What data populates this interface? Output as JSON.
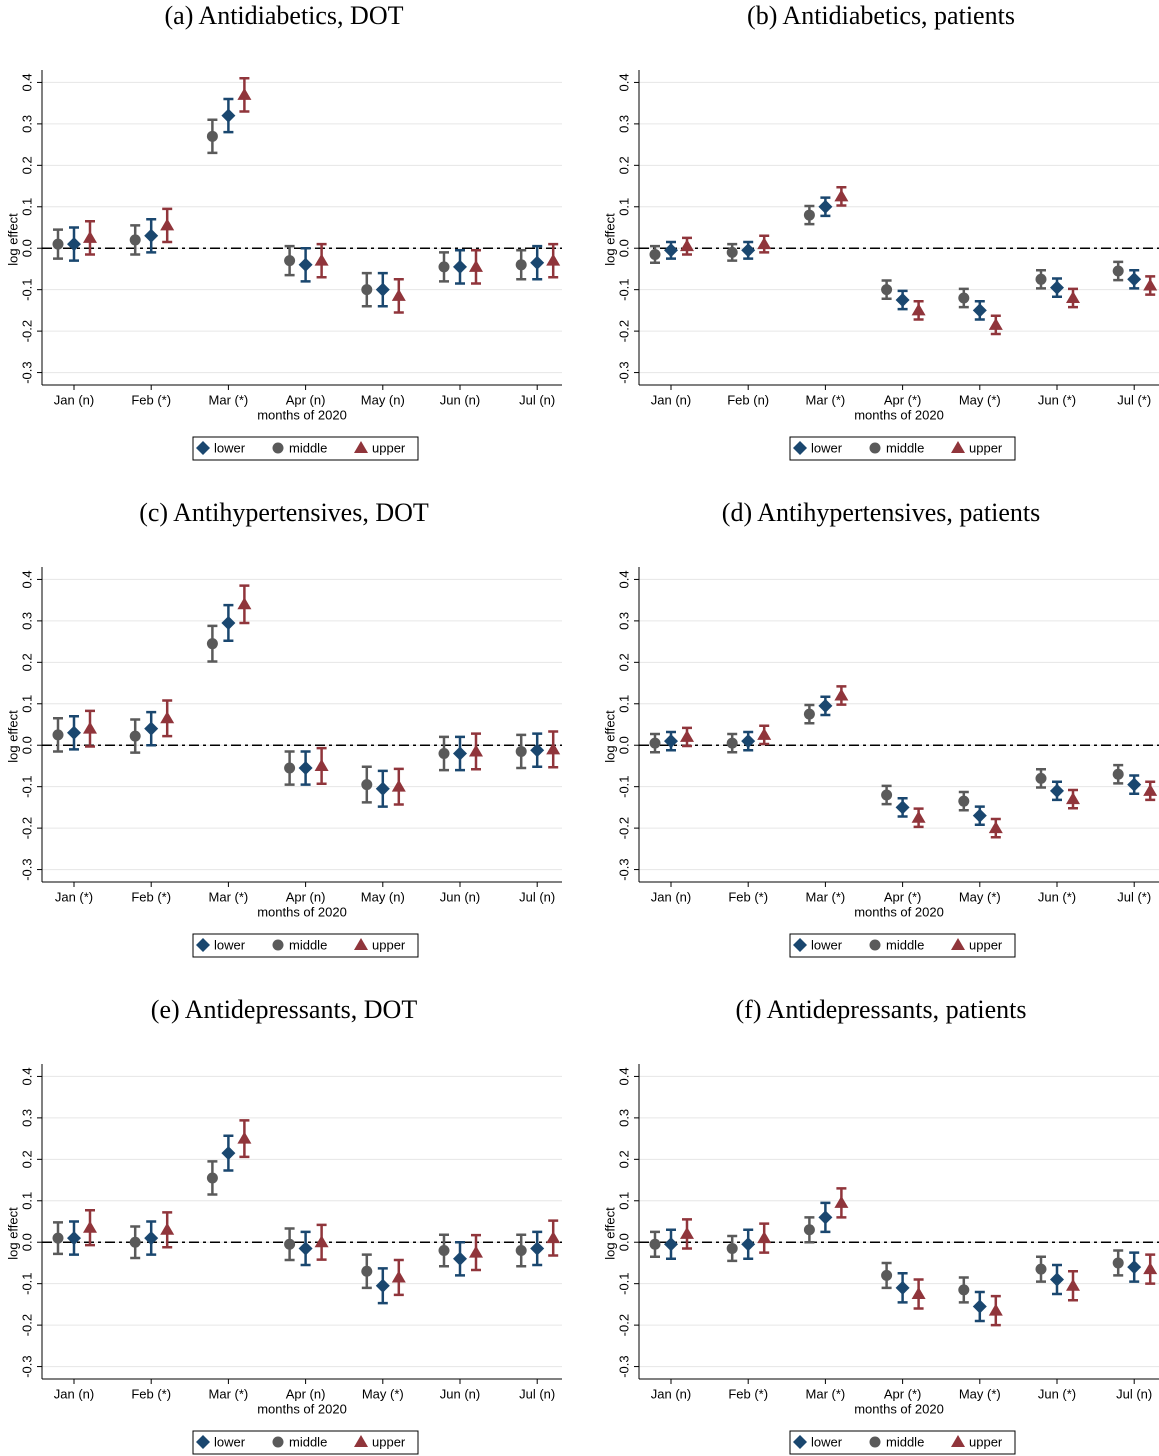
{
  "chart_data": [
    {
      "type": "errorbar",
      "title": "(a) Antidiabetics, DOT",
      "xlabel": "months of 2020",
      "ylabel": "log effect",
      "categories": [
        "Jan (n)",
        "Feb (*)",
        "Mar (*)",
        "Apr (n)",
        "May (n)",
        "Jun (n)",
        "Jul (n)"
      ],
      "ylim": [
        -0.33,
        0.43
      ],
      "yticks": [
        -0.3,
        -0.2,
        -0.1,
        {
          "value": 0,
          "label": "0.0"
        },
        0.1,
        0.2,
        0.3,
        0.4
      ],
      "grid": true,
      "hline": 0,
      "series": [
        {
          "name": "lower",
          "color": "#1a476f",
          "marker": "diamond",
          "values": [
            0.01,
            0.03,
            0.32,
            -0.04,
            -0.1,
            -0.045,
            -0.035
          ],
          "errors": [
            0.04,
            0.04,
            0.04,
            0.04,
            0.04,
            0.04,
            0.04
          ]
        },
        {
          "name": "middle",
          "color": "#5a5a5a",
          "marker": "circle",
          "values": [
            0.01,
            0.02,
            0.27,
            -0.03,
            -0.1,
            -0.045,
            -0.04
          ],
          "errors": [
            0.035,
            0.035,
            0.04,
            0.035,
            0.04,
            0.035,
            0.035
          ]
        },
        {
          "name": "upper",
          "color": "#90353b",
          "marker": "triangle",
          "values": [
            0.025,
            0.055,
            0.37,
            -0.03,
            -0.115,
            -0.045,
            -0.03
          ],
          "errors": [
            0.04,
            0.04,
            0.04,
            0.04,
            0.04,
            0.04,
            0.04
          ]
        }
      ]
    },
    {
      "type": "errorbar",
      "title": "(b) Antidiabetics, patients",
      "xlabel": "months of 2020",
      "ylabel": "log effect",
      "categories": [
        "Jan (n)",
        "Feb (n)",
        "Mar (*)",
        "Apr (*)",
        "May (*)",
        "Jun (*)",
        "Jul (*)"
      ],
      "ylim": [
        -0.33,
        0.43
      ],
      "yticks": [
        -0.3,
        -0.2,
        -0.1,
        {
          "value": 0,
          "label": "0.0"
        },
        0.1,
        0.2,
        0.3,
        0.4
      ],
      "grid": true,
      "hline": 0,
      "series": [
        {
          "name": "lower",
          "color": "#1a476f",
          "marker": "diamond",
          "values": [
            -0.005,
            -0.005,
            0.1,
            -0.125,
            -0.15,
            -0.095,
            -0.075
          ],
          "errors": [
            0.02,
            0.02,
            0.022,
            0.022,
            0.022,
            0.022,
            0.022
          ]
        },
        {
          "name": "middle",
          "color": "#5a5a5a",
          "marker": "circle",
          "values": [
            -0.015,
            -0.01,
            0.08,
            -0.1,
            -0.12,
            -0.075,
            -0.055
          ],
          "errors": [
            0.02,
            0.02,
            0.022,
            0.022,
            0.022,
            0.022,
            0.022
          ]
        },
        {
          "name": "upper",
          "color": "#90353b",
          "marker": "triangle",
          "values": [
            0.005,
            0.01,
            0.125,
            -0.15,
            -0.185,
            -0.12,
            -0.09
          ],
          "errors": [
            0.02,
            0.02,
            0.022,
            0.022,
            0.022,
            0.022,
            0.022
          ]
        }
      ]
    },
    {
      "type": "errorbar",
      "title": "(c) Antihypertensives, DOT",
      "xlabel": "months of 2020",
      "ylabel": "log effect",
      "categories": [
        "Jan (*)",
        "Feb (*)",
        "Mar (*)",
        "Apr (n)",
        "May (n)",
        "Jun (n)",
        "Jul (n)"
      ],
      "ylim": [
        -0.33,
        0.43
      ],
      "yticks": [
        -0.3,
        -0.2,
        -0.1,
        {
          "value": 0,
          "label": "0.0"
        },
        0.1,
        0.2,
        0.3,
        0.4
      ],
      "grid": true,
      "hline": 0,
      "series": [
        {
          "name": "lower",
          "color": "#1a476f",
          "marker": "diamond",
          "values": [
            0.03,
            0.04,
            0.295,
            -0.055,
            -0.105,
            -0.02,
            -0.012
          ],
          "errors": [
            0.04,
            0.04,
            0.043,
            0.04,
            0.043,
            0.04,
            0.04
          ]
        },
        {
          "name": "middle",
          "color": "#5a5a5a",
          "marker": "circle",
          "values": [
            0.025,
            0.022,
            0.245,
            -0.055,
            -0.095,
            -0.02,
            -0.015
          ],
          "errors": [
            0.04,
            0.04,
            0.043,
            0.04,
            0.043,
            0.04,
            0.04
          ]
        },
        {
          "name": "upper",
          "color": "#90353b",
          "marker": "triangle",
          "values": [
            0.04,
            0.065,
            0.34,
            -0.05,
            -0.1,
            -0.015,
            -0.01
          ],
          "errors": [
            0.043,
            0.043,
            0.045,
            0.043,
            0.043,
            0.043,
            0.043
          ]
        }
      ]
    },
    {
      "type": "errorbar",
      "title": "(d) Antihypertensives, patients",
      "xlabel": "months of 2020",
      "ylabel": "log effect",
      "categories": [
        "Jan (n)",
        "Feb (*)",
        "Mar (*)",
        "Apr (*)",
        "May (*)",
        "Jun (*)",
        "Jul (*)"
      ],
      "ylim": [
        -0.33,
        0.43
      ],
      "yticks": [
        -0.3,
        -0.2,
        -0.1,
        {
          "value": 0,
          "label": "0.0"
        },
        0.1,
        0.2,
        0.3,
        0.4
      ],
      "grid": true,
      "hline": 0,
      "series": [
        {
          "name": "lower",
          "color": "#1a476f",
          "marker": "diamond",
          "values": [
            0.01,
            0.01,
            0.095,
            -0.15,
            -0.17,
            -0.11,
            -0.095
          ],
          "errors": [
            0.022,
            0.022,
            0.022,
            0.022,
            0.022,
            0.022,
            0.022
          ]
        },
        {
          "name": "middle",
          "color": "#5a5a5a",
          "marker": "circle",
          "values": [
            0.005,
            0.005,
            0.075,
            -0.12,
            -0.135,
            -0.08,
            -0.07
          ],
          "errors": [
            0.022,
            0.022,
            0.022,
            0.022,
            0.022,
            0.022,
            0.022
          ]
        },
        {
          "name": "upper",
          "color": "#90353b",
          "marker": "triangle",
          "values": [
            0.02,
            0.025,
            0.12,
            -0.175,
            -0.2,
            -0.13,
            -0.11
          ],
          "errors": [
            0.022,
            0.022,
            0.022,
            0.022,
            0.022,
            0.022,
            0.022
          ]
        }
      ]
    },
    {
      "type": "errorbar",
      "title": "(e) Antidepressants, DOT",
      "xlabel": "months of 2020",
      "ylabel": "log effect",
      "categories": [
        "Jan (n)",
        "Feb (*)",
        "Mar (*)",
        "Apr (n)",
        "May (*)",
        "Jun (n)",
        "Jul (n)"
      ],
      "ylim": [
        -0.33,
        0.43
      ],
      "yticks": [
        -0.3,
        -0.2,
        -0.1,
        {
          "value": 0,
          "label": "0.0"
        },
        0.1,
        0.2,
        0.3,
        0.4
      ],
      "grid": true,
      "hline": 0,
      "series": [
        {
          "name": "lower",
          "color": "#1a476f",
          "marker": "diamond",
          "values": [
            0.01,
            0.01,
            0.215,
            -0.015,
            -0.105,
            -0.04,
            -0.015
          ],
          "errors": [
            0.04,
            0.04,
            0.042,
            0.04,
            0.042,
            0.04,
            0.04
          ]
        },
        {
          "name": "middle",
          "color": "#5a5a5a",
          "marker": "circle",
          "values": [
            0.01,
            0.0,
            0.155,
            -0.005,
            -0.07,
            -0.02,
            -0.02
          ],
          "errors": [
            0.038,
            0.038,
            0.04,
            0.038,
            0.04,
            0.038,
            0.038
          ]
        },
        {
          "name": "upper",
          "color": "#90353b",
          "marker": "triangle",
          "values": [
            0.035,
            0.03,
            0.25,
            0.0,
            -0.085,
            -0.025,
            0.01
          ],
          "errors": [
            0.042,
            0.042,
            0.044,
            0.042,
            0.042,
            0.042,
            0.042
          ]
        }
      ]
    },
    {
      "type": "errorbar",
      "title": "(f) Antidepressants, patients",
      "xlabel": "months of 2020",
      "ylabel": "log effect",
      "categories": [
        "Jan (n)",
        "Feb (*)",
        "Mar (*)",
        "Apr (*)",
        "May (*)",
        "Jun (*)",
        "Jul (n)"
      ],
      "ylim": [
        -0.33,
        0.43
      ],
      "yticks": [
        -0.3,
        -0.2,
        -0.1,
        {
          "value": 0,
          "label": "0.0"
        },
        0.1,
        0.2,
        0.3,
        0.4
      ],
      "grid": true,
      "hline": 0,
      "series": [
        {
          "name": "lower",
          "color": "#1a476f",
          "marker": "diamond",
          "values": [
            -0.005,
            -0.005,
            0.06,
            -0.11,
            -0.155,
            -0.09,
            -0.06
          ],
          "errors": [
            0.035,
            0.035,
            0.035,
            0.035,
            0.035,
            0.035,
            0.035
          ]
        },
        {
          "name": "middle",
          "color": "#5a5a5a",
          "marker": "circle",
          "values": [
            -0.005,
            -0.015,
            0.03,
            -0.08,
            -0.115,
            -0.065,
            -0.05
          ],
          "errors": [
            0.03,
            0.03,
            0.03,
            0.03,
            0.03,
            0.03,
            0.03
          ]
        },
        {
          "name": "upper",
          "color": "#90353b",
          "marker": "triangle",
          "values": [
            0.02,
            0.01,
            0.095,
            -0.125,
            -0.165,
            -0.105,
            -0.065
          ],
          "errors": [
            0.035,
            0.035,
            0.035,
            0.035,
            0.035,
            0.035,
            0.035
          ]
        }
      ]
    }
  ]
}
